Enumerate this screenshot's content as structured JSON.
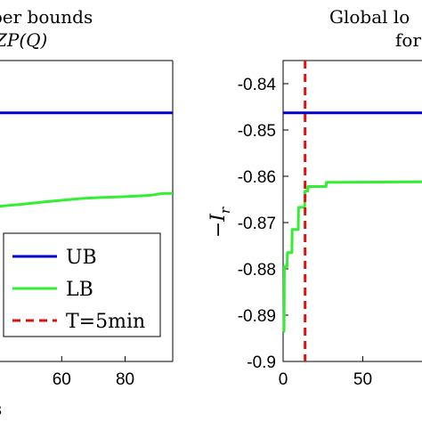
{
  "chart_data": [
    {
      "type": "line",
      "panel": "left",
      "title_lines": [
        "Global upper bounds",
        "for R_ZP(Q)"
      ],
      "title_visible_fragments": [
        "per bounds",
        "ZP(Q)"
      ],
      "xlabel": "",
      "xlabel_fragment": "s",
      "ylabel": "",
      "xlim": [
        40,
        95
      ],
      "ylim": [
        -0.9,
        -0.835
      ],
      "x_ticks": [
        60,
        80
      ],
      "x_tick_labels": [
        "60",
        "80"
      ],
      "y_ticks": [],
      "grid": false,
      "legend_placement": "bottom-right",
      "series": [
        {
          "name": "UB",
          "color": "#0000cc",
          "style": "solid",
          "points": [
            [
              40,
              -0.8463
            ],
            [
              95,
              -0.8463
            ]
          ]
        },
        {
          "name": "LB",
          "color": "#33ee33",
          "style": "solid",
          "points": [
            [
              40,
              -0.8665
            ],
            [
              48,
              -0.866
            ],
            [
              55,
              -0.8655
            ],
            [
              60,
              -0.8652
            ],
            [
              66,
              -0.8648
            ],
            [
              72,
              -0.8646
            ],
            [
              80,
              -0.8644
            ],
            [
              88,
              -0.8641
            ],
            [
              92,
              -0.8637
            ],
            [
              95,
              -0.8637
            ]
          ]
        },
        {
          "name": "T=5min",
          "color": "#dd1111",
          "style": "dashed",
          "points": []
        }
      ]
    },
    {
      "type": "line",
      "panel": "right",
      "title_lines": [
        "Global lower bounds",
        "for"
      ],
      "title_visible_fragments": [
        "Global lo",
        "for"
      ],
      "xlabel": "",
      "ylabel": "−I_r",
      "ylabel_main": "−I",
      "ylabel_sub": "r",
      "xlim": [
        0,
        95
      ],
      "ylim": [
        -0.9,
        -0.835
      ],
      "x_ticks": [
        0,
        50
      ],
      "x_tick_labels": [
        "0",
        "50"
      ],
      "y_ticks": [
        -0.9,
        -0.89,
        -0.88,
        -0.87,
        -0.86,
        -0.85,
        -0.84
      ],
      "y_tick_labels": [
        "-0.9",
        "-0.89",
        "-0.88",
        "-0.87",
        "-0.86",
        "-0.85",
        "-0.84"
      ],
      "grid": false,
      "series": [
        {
          "name": "UB",
          "color": "#0000cc",
          "style": "solid",
          "points": [
            [
              0,
              -0.8463
            ],
            [
              95,
              -0.8463
            ]
          ]
        },
        {
          "name": "LB",
          "color": "#33ee33",
          "style": "solid",
          "points": [
            [
              0,
              -0.8935
            ],
            [
              0.6,
              -0.8935
            ],
            [
              0.8,
              -0.8795
            ],
            [
              2.5,
              -0.8795
            ],
            [
              2.7,
              -0.8765
            ],
            [
              5.5,
              -0.8765
            ],
            [
              5.7,
              -0.8715
            ],
            [
              9.5,
              -0.8715
            ],
            [
              9.7,
              -0.8667
            ],
            [
              13.5,
              -0.8667
            ],
            [
              13.7,
              -0.8632
            ],
            [
              15.5,
              -0.8632
            ],
            [
              15.7,
              -0.8622
            ],
            [
              27,
              -0.8622
            ],
            [
              27.2,
              -0.8613
            ],
            [
              95,
              -0.8612
            ]
          ]
        },
        {
          "name": "T=5min",
          "color": "#dd1111",
          "style": "dashed",
          "vline_x": 13.8
        }
      ]
    }
  ],
  "legend": {
    "entries": [
      {
        "label": "UB",
        "color": "#0000cc",
        "style": "solid"
      },
      {
        "label": "LB",
        "color": "#33ee33",
        "style": "solid"
      },
      {
        "label": "T=5min",
        "color": "#dd1111",
        "style": "dashed"
      }
    ]
  }
}
